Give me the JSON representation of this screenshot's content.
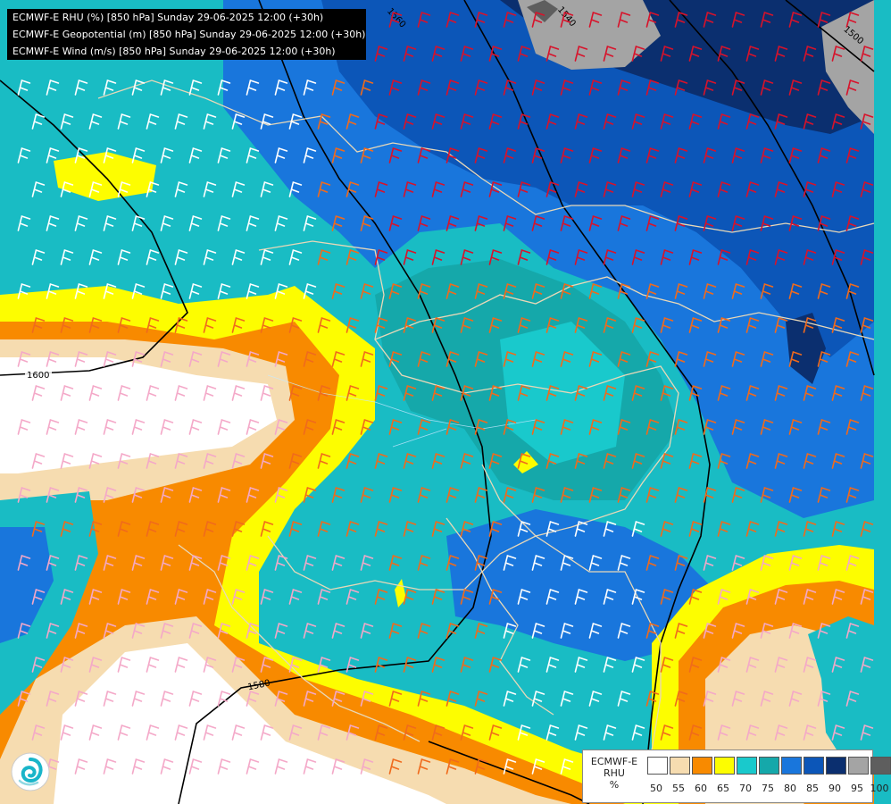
{
  "titles": [
    "ECMWF-E RHU (%) [850 hPa] Sunday 29-06-2025 12:00 (+30h)",
    "ECMWF-E Geopotential (m) [850 hPa] Sunday 29-06-2025 12:00 (+30h)",
    "ECMWF-E Wind (m/s) [850 hPa] Sunday 29-06-2025 12:00 (+30h)"
  ],
  "contour_labels": [
    "1600",
    "1560",
    "1540",
    "1500",
    "1580"
  ],
  "legend": {
    "title_lines": [
      "ECMWF-E",
      "RHU",
      "%"
    ],
    "ticks": [
      "50",
      "55",
      "60",
      "65",
      "70",
      "75",
      "80",
      "85",
      "90",
      "95",
      "100"
    ],
    "colors": [
      "#ffffff",
      "#f6dcb0",
      "#f88a00",
      "#fdfd00",
      "#19c9cc",
      "#15a8aa",
      "#1976dc",
      "#0c56b8",
      "#0b2f6f",
      "#a4a4a4",
      "#5e5e5e"
    ]
  },
  "logo": {
    "name": "DHMZ swirl logo",
    "icon": "swirl-logo-icon"
  }
}
